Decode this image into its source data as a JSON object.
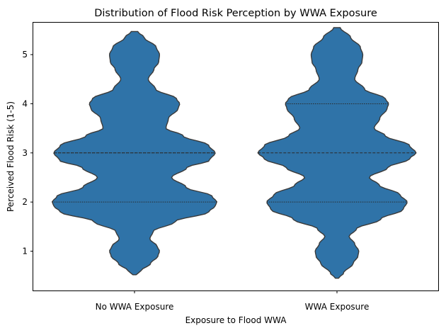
{
  "chart_data": {
    "type": "violin",
    "title": "Distribution of Flood Risk Perception by WWA Exposure",
    "xlabel": "Exposure to Flood WWA",
    "ylabel": "Perceived Flood Risk (1-5)",
    "categories": [
      "No WWA Exposure",
      "WWA Exposure"
    ],
    "ylim": [
      0.2,
      5.65
    ],
    "yticks": [
      1,
      2,
      3,
      4,
      5
    ],
    "grid": false,
    "color": "#2f73a8",
    "series": [
      {
        "category": "No WWA Exposure",
        "range": [
          0.52,
          5.47
        ],
        "quartiles": [
          2.0,
          3.0,
          3.0
        ],
        "density": [
          [
            0.52,
            0.02
          ],
          [
            0.6,
            0.08
          ],
          [
            0.75,
            0.2
          ],
          [
            0.9,
            0.29
          ],
          [
            1.0,
            0.31
          ],
          [
            1.1,
            0.28
          ],
          [
            1.25,
            0.19
          ],
          [
            1.4,
            0.23
          ],
          [
            1.6,
            0.5
          ],
          [
            1.8,
            0.92
          ],
          [
            1.92,
            1.0
          ],
          [
            2.0,
            1.02
          ],
          [
            2.12,
            0.96
          ],
          [
            2.3,
            0.64
          ],
          [
            2.5,
            0.46
          ],
          [
            2.7,
            0.65
          ],
          [
            2.85,
            0.93
          ],
          [
            3.0,
            1.0
          ],
          [
            3.15,
            0.92
          ],
          [
            3.35,
            0.6
          ],
          [
            3.5,
            0.39
          ],
          [
            3.7,
            0.42
          ],
          [
            3.9,
            0.54
          ],
          [
            4.0,
            0.56
          ],
          [
            4.1,
            0.52
          ],
          [
            4.3,
            0.26
          ],
          [
            4.5,
            0.17
          ],
          [
            4.7,
            0.24
          ],
          [
            4.85,
            0.3
          ],
          [
            5.0,
            0.31
          ],
          [
            5.15,
            0.27
          ],
          [
            5.35,
            0.12
          ],
          [
            5.47,
            0.04
          ]
        ]
      },
      {
        "category": "WWA Exposure",
        "range": [
          0.45,
          5.55
        ],
        "quartiles": [
          2.0,
          3.0,
          4.0
        ],
        "density": [
          [
            0.45,
            0.02
          ],
          [
            0.55,
            0.08
          ],
          [
            0.75,
            0.2
          ],
          [
            0.9,
            0.26
          ],
          [
            1.0,
            0.27
          ],
          [
            1.15,
            0.22
          ],
          [
            1.3,
            0.15
          ],
          [
            1.45,
            0.24
          ],
          [
            1.65,
            0.54
          ],
          [
            1.85,
            0.82
          ],
          [
            2.0,
            0.87
          ],
          [
            2.15,
            0.78
          ],
          [
            2.35,
            0.52
          ],
          [
            2.5,
            0.4
          ],
          [
            2.7,
            0.63
          ],
          [
            2.88,
            0.9
          ],
          [
            3.0,
            0.98
          ],
          [
            3.15,
            0.9
          ],
          [
            3.35,
            0.6
          ],
          [
            3.5,
            0.46
          ],
          [
            3.7,
            0.53
          ],
          [
            3.9,
            0.62
          ],
          [
            4.0,
            0.64
          ],
          [
            4.1,
            0.6
          ],
          [
            4.3,
            0.34
          ],
          [
            4.5,
            0.22
          ],
          [
            4.7,
            0.26
          ],
          [
            4.85,
            0.31
          ],
          [
            5.0,
            0.32
          ],
          [
            5.15,
            0.29
          ],
          [
            5.35,
            0.17
          ],
          [
            5.55,
            0.04
          ]
        ]
      }
    ]
  }
}
